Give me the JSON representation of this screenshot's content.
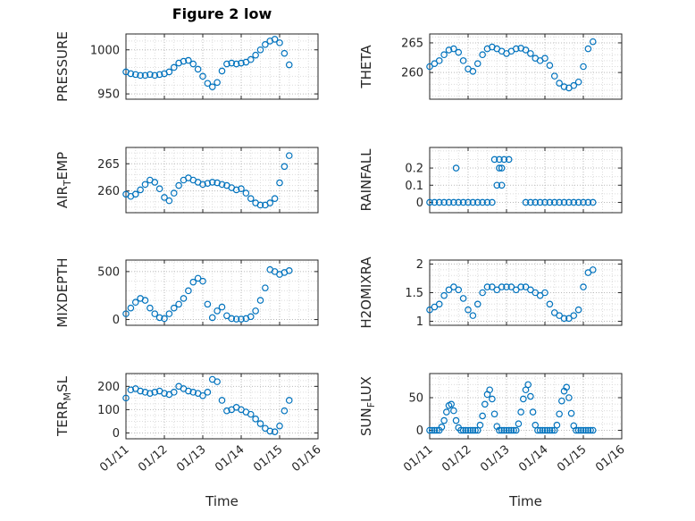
{
  "figure": {
    "title": "Figure 2 low",
    "xlabel": "Time",
    "xlim": [
      0,
      5
    ],
    "xticks": [
      0,
      1,
      2,
      3,
      4,
      5
    ],
    "xtick_labels": [
      "01/11",
      "01/12",
      "01/13",
      "01/14",
      "01/15",
      "01/16"
    ],
    "x_minor_step": 0.25,
    "marker_color": "#0072BD",
    "axis_color": "#262626",
    "grid_color": "#b9b9b9",
    "minor_grid_color": "#dcdcdc",
    "background": "#ffffff"
  },
  "chart_shared": {
    "time_days": [
      0,
      0.125,
      0.25,
      0.375,
      0.5,
      0.625,
      0.75,
      0.875,
      1,
      1.125,
      1.25,
      1.375,
      1.5,
      1.625,
      1.75,
      1.875,
      2,
      2.125,
      2.25,
      2.375,
      2.5,
      2.625,
      2.75,
      2.875,
      3,
      3.125,
      3.25,
      3.375,
      3.5,
      3.625,
      3.75,
      3.875,
      4,
      4.125,
      4.25
    ]
  },
  "chart_data": [
    {
      "id": "pressure",
      "type": "scatter",
      "ylabel_parts": [
        {
          "t": "PRESSURE",
          "sub": false
        }
      ],
      "ylim": [
        944,
        1018
      ],
      "yticks": [
        950,
        1000
      ],
      "ytick_labels": [
        "950",
        "1000"
      ],
      "yminor": [
        960,
        970,
        980,
        990,
        1010
      ],
      "show_xtick_labels": false,
      "x": "time_days",
      "y": [
        975,
        973,
        972,
        971,
        971,
        972,
        971,
        972,
        973,
        975,
        980,
        985,
        987,
        988,
        984,
        978,
        970,
        962,
        958,
        963,
        976,
        984,
        985,
        984,
        985,
        986,
        989,
        994,
        1000,
        1006,
        1010,
        1012,
        1008,
        996,
        983
      ]
    },
    {
      "id": "theta",
      "type": "scatter",
      "ylabel_parts": [
        {
          "t": "THETA",
          "sub": false
        }
      ],
      "ylim": [
        255.5,
        266.5
      ],
      "yticks": [
        260,
        265
      ],
      "ytick_labels": [
        "260",
        "265"
      ],
      "yminor": [
        256,
        257,
        258,
        259,
        261,
        262,
        263,
        264,
        266
      ],
      "show_xtick_labels": false,
      "x": "time_days",
      "y": [
        261,
        261.5,
        262,
        263,
        263.8,
        264,
        263.4,
        262,
        260.6,
        260.2,
        261.5,
        263,
        264,
        264.3,
        264,
        263.6,
        263.2,
        263.6,
        264,
        264.1,
        263.8,
        263.2,
        262.4,
        262,
        262.4,
        261.2,
        259.4,
        258.2,
        257.6,
        257.4,
        257.8,
        258.4,
        261,
        264,
        265.2
      ]
    },
    {
      "id": "air_temp",
      "type": "scatter",
      "ylabel_parts": [
        {
          "t": "AIR",
          "sub": false
        },
        {
          "t": "T",
          "sub": true
        },
        {
          "t": "EMP",
          "sub": false
        }
      ],
      "ylim": [
        256,
        268
      ],
      "yticks": [
        260,
        265
      ],
      "ytick_labels": [
        "260",
        "265"
      ],
      "yminor": [
        257,
        258,
        259,
        261,
        262,
        263,
        264,
        266,
        267
      ],
      "show_xtick_labels": false,
      "x": "time_days",
      "y": [
        259.4,
        259,
        259.4,
        260.2,
        261.2,
        262,
        261.6,
        260.4,
        258.8,
        258.2,
        259.6,
        261,
        262,
        262.4,
        262,
        261.6,
        261.2,
        261.4,
        261.6,
        261.5,
        261.2,
        261,
        260.6,
        260.2,
        260.4,
        259.6,
        258.6,
        257.8,
        257.4,
        257.4,
        257.8,
        258.6,
        261.5,
        264.5,
        266.5
      ]
    },
    {
      "id": "rainfall",
      "type": "scatter",
      "ylabel_parts": [
        {
          "t": "RAINFALL",
          "sub": false
        }
      ],
      "ylim": [
        -0.06,
        0.32
      ],
      "yticks": [
        0,
        0.1,
        0.2
      ],
      "ytick_labels": [
        "0",
        "0.1",
        "0.2"
      ],
      "yminor": [
        0.05,
        0.15,
        0.25,
        0.3
      ],
      "show_xtick_labels": false,
      "x": [
        0,
        0.125,
        0.25,
        0.375,
        0.5,
        0.625,
        0.75,
        0.875,
        1,
        1.125,
        1.25,
        1.375,
        1.5,
        1.625,
        2.5,
        2.625,
        2.75,
        2.875,
        3,
        3.125,
        3.25,
        3.375,
        3.5,
        3.625,
        3.75,
        3.875,
        4,
        4.125,
        4.25,
        0.6875,
        1.6875,
        1.8125,
        1.9375,
        2.0625,
        1.8125,
        1.875,
        1.75,
        1.875
      ],
      "y": [
        0,
        0,
        0,
        0,
        0,
        0,
        0,
        0,
        0,
        0,
        0,
        0,
        0,
        0,
        0,
        0,
        0,
        0,
        0,
        0,
        0,
        0,
        0,
        0,
        0,
        0,
        0,
        0,
        0,
        0.2,
        0.25,
        0.25,
        0.25,
        0.25,
        0.2,
        0.2,
        0.1,
        0.1
      ]
    },
    {
      "id": "mixdepth",
      "type": "scatter",
      "ylabel_parts": [
        {
          "t": "MIXDEPTH",
          "sub": false
        }
      ],
      "ylim": [
        -60,
        620
      ],
      "yticks": [
        0,
        500
      ],
      "ytick_labels": [
        "0",
        "500"
      ],
      "yminor": [
        100,
        200,
        300,
        400,
        600
      ],
      "show_xtick_labels": false,
      "x": "time_days",
      "y": [
        60,
        120,
        180,
        220,
        200,
        120,
        60,
        20,
        10,
        60,
        120,
        160,
        220,
        300,
        390,
        430,
        400,
        160,
        20,
        90,
        130,
        40,
        10,
        5,
        5,
        10,
        30,
        90,
        200,
        330,
        520,
        500,
        470,
        490,
        510
      ]
    },
    {
      "id": "h2omixra",
      "type": "scatter",
      "ylabel_parts": [
        {
          "t": "H2OMIXRA",
          "sub": false
        }
      ],
      "ylim": [
        0.93,
        2.07
      ],
      "yticks": [
        1,
        1.5,
        2
      ],
      "ytick_labels": [
        "1",
        "1.5",
        "2"
      ],
      "yminor": [
        1.1,
        1.2,
        1.3,
        1.4,
        1.6,
        1.7,
        1.8,
        1.9
      ],
      "show_xtick_labels": false,
      "x": "time_days",
      "y": [
        1.2,
        1.25,
        1.3,
        1.45,
        1.55,
        1.6,
        1.55,
        1.4,
        1.2,
        1.1,
        1.3,
        1.5,
        1.6,
        1.6,
        1.55,
        1.6,
        1.6,
        1.6,
        1.55,
        1.6,
        1.6,
        1.55,
        1.5,
        1.45,
        1.5,
        1.3,
        1.15,
        1.1,
        1.05,
        1.05,
        1.1,
        1.2,
        1.6,
        1.85,
        1.9
      ]
    },
    {
      "id": "terr_msl",
      "type": "scatter",
      "ylabel_parts": [
        {
          "t": "TERR",
          "sub": false
        },
        {
          "t": "M",
          "sub": true
        },
        {
          "t": "SL",
          "sub": false
        }
      ],
      "ylim": [
        -25,
        255
      ],
      "yticks": [
        0,
        100,
        200
      ],
      "ytick_labels": [
        "0",
        "100",
        "200"
      ],
      "yminor": [
        25,
        50,
        75,
        125,
        150,
        175,
        225,
        250
      ],
      "show_xtick_labels": true,
      "x": "time_days",
      "y": [
        150,
        185,
        190,
        180,
        175,
        170,
        175,
        180,
        170,
        165,
        175,
        200,
        190,
        180,
        175,
        170,
        160,
        175,
        230,
        220,
        140,
        95,
        100,
        110,
        100,
        90,
        80,
        60,
        40,
        20,
        8,
        5,
        30,
        95,
        140
      ]
    },
    {
      "id": "sun_flux",
      "type": "scatter",
      "ylabel_parts": [
        {
          "t": "SUN",
          "sub": false
        },
        {
          "t": "F",
          "sub": true
        },
        {
          "t": "LUX",
          "sub": false
        }
      ],
      "ylim": [
        -13,
        87
      ],
      "yticks": [
        0,
        50
      ],
      "ytick_labels": [
        "0",
        "50"
      ],
      "yminor": [
        10,
        20,
        30,
        40,
        60,
        70,
        80
      ],
      "show_xtick_labels": true,
      "x": [
        0,
        0.0625,
        0.125,
        0.1875,
        0.25,
        0.3125,
        0.375,
        0.4375,
        0.5,
        0.5625,
        0.625,
        0.6875,
        0.75,
        0.8125,
        0.875,
        0.9375,
        1,
        1.0625,
        1.125,
        1.1875,
        1.25,
        1.3125,
        1.375,
        1.4375,
        1.5,
        1.5625,
        1.625,
        1.6875,
        1.75,
        1.8125,
        1.875,
        1.9375,
        2,
        2.0625,
        2.125,
        2.1875,
        2.25,
        2.3125,
        2.375,
        2.4375,
        2.5,
        2.5625,
        2.625,
        2.6875,
        2.75,
        2.8125,
        2.875,
        2.9375,
        3,
        3.0625,
        3.125,
        3.1875,
        3.25,
        3.3125,
        3.375,
        3.4375,
        3.5,
        3.5625,
        3.625,
        3.6875,
        3.75,
        3.8125,
        3.875,
        3.9375,
        4,
        4.0625,
        4.125,
        4.1875,
        4.25
      ],
      "y": [
        0,
        0,
        0,
        0,
        0,
        5,
        15,
        28,
        38,
        40,
        30,
        15,
        4,
        0,
        0,
        0,
        0,
        0,
        0,
        0,
        0,
        8,
        22,
        40,
        55,
        62,
        48,
        25,
        6,
        0,
        0,
        0,
        0,
        0,
        0,
        0,
        0,
        10,
        28,
        48,
        62,
        70,
        52,
        28,
        8,
        0,
        0,
        0,
        0,
        0,
        0,
        0,
        0,
        8,
        25,
        45,
        60,
        66,
        50,
        26,
        7,
        0,
        0,
        0,
        0,
        0,
        0,
        0,
        0
      ]
    }
  ]
}
